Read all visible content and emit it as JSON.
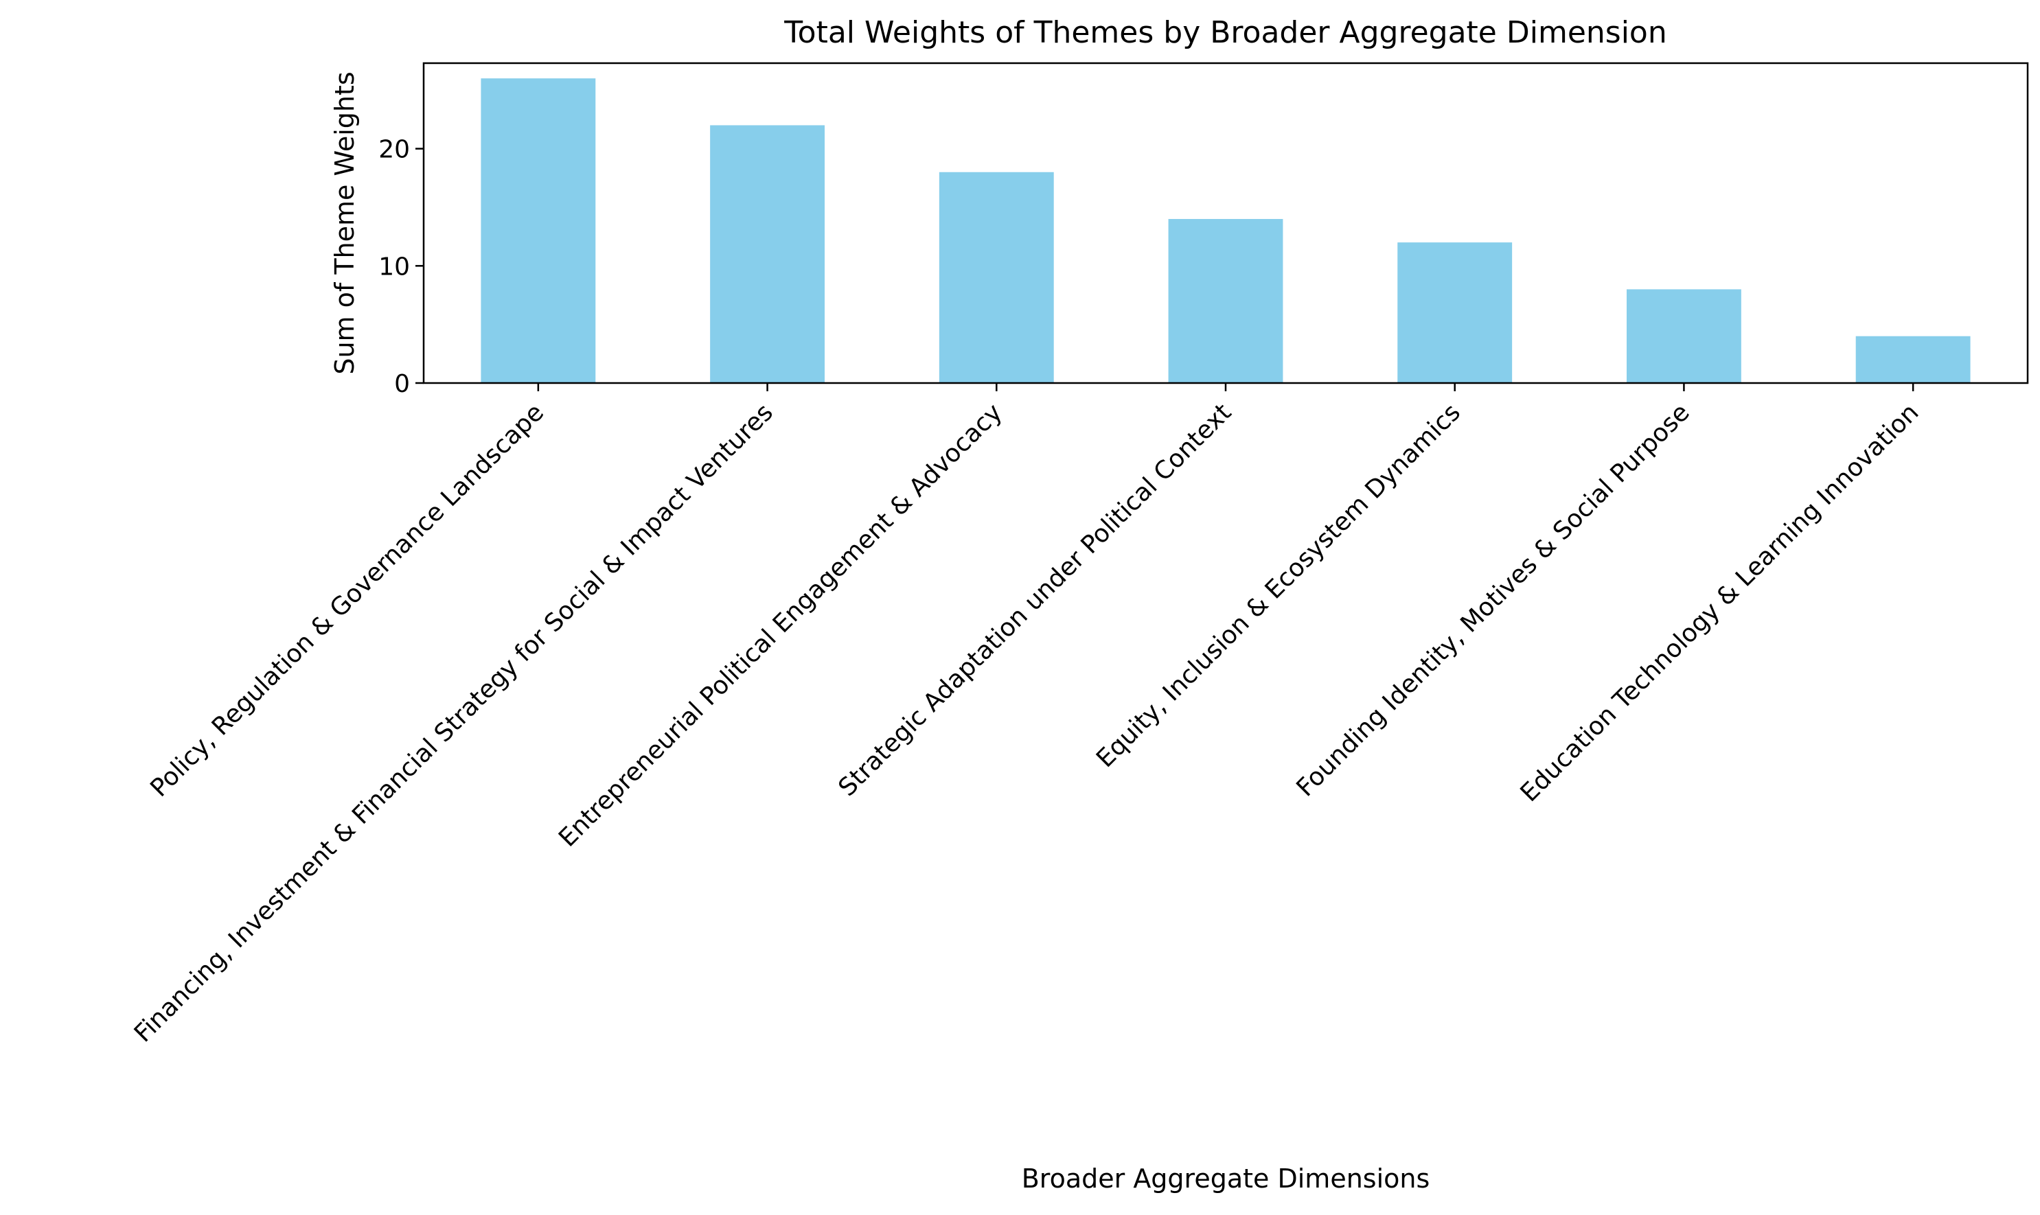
{
  "chart_data": {
    "type": "bar",
    "title": "Total Weights of Themes by Broader Aggregate Dimension",
    "xlabel": "Broader Aggregate Dimensions",
    "ylabel": "Sum of Theme Weights",
    "categories": [
      "Policy, Regulation & Governance Landscape",
      "Financing, Investment & Financial Strategy for Social & Impact Ventures",
      "Entrepreneurial Political Engagement & Advocacy",
      "Strategic Adaptation under Political Context",
      "Equity, Inclusion & Ecosystem Dynamics",
      "Founding Identity, Motives & Social Purpose",
      "Education Technology & Learning Innovation"
    ],
    "values": [
      26,
      22,
      18,
      14,
      12,
      8,
      4
    ],
    "ylim": [
      0,
      27.3
    ],
    "yticks": [
      0,
      10,
      20
    ],
    "ytick_labels": [
      "0",
      "10",
      "20"
    ],
    "bar_color": "#87ceeb",
    "grid": false,
    "legend": "none"
  }
}
